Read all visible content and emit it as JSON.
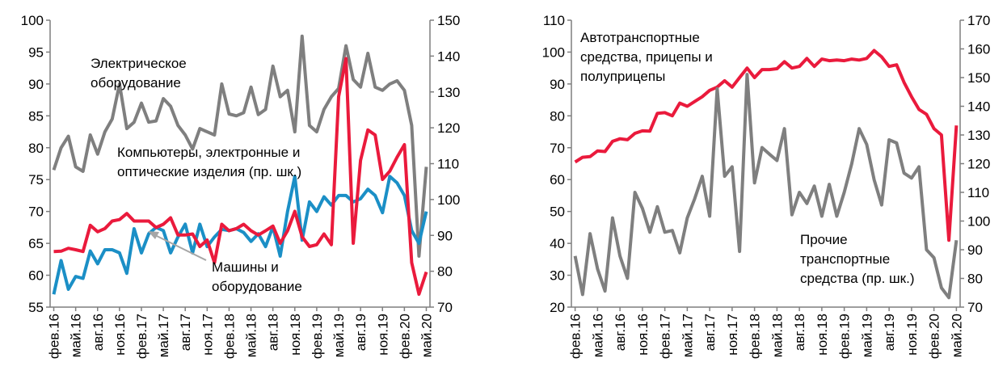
{
  "chart_data": [
    {
      "type": "line",
      "categories": [
        "фев.16",
        null,
        null,
        "май.16",
        null,
        null,
        "авг.16",
        null,
        null,
        "ноя.16",
        null,
        null,
        "фев.17",
        null,
        null,
        "май.17",
        null,
        null,
        "авг.17",
        null,
        null,
        "ноя.17",
        null,
        null,
        "фев.18",
        null,
        null,
        "май.18",
        null,
        null,
        "авг.18",
        null,
        null,
        "ноя.18",
        null,
        null,
        "фев.19",
        null,
        null,
        "май.19",
        null,
        null,
        "авг.19",
        null,
        null,
        "ноя.19",
        null,
        null,
        "фев.20",
        null,
        null,
        "май.20"
      ],
      "ylim": [
        55,
        100
      ],
      "yticks": [
        55,
        60,
        65,
        70,
        75,
        80,
        85,
        90,
        95,
        100
      ],
      "y2lim": [
        70,
        150
      ],
      "y2ticks": [
        70,
        80,
        90,
        100,
        110,
        120,
        130,
        140,
        150
      ],
      "annotations": [
        {
          "lines": [
            "Электрическое",
            "оборудование"
          ]
        },
        {
          "lines": [
            "Компьютеры, электронные и",
            "оптические изделия (пр. шк.)"
          ]
        },
        {
          "lines": [
            "Машины и",
            "оборудование"
          ]
        }
      ],
      "series": [
        {
          "color": "#7f7f7f",
          "values": [
            76.5,
            80,
            81.8,
            77,
            76.3,
            82,
            79,
            82.5,
            84.5,
            90,
            83,
            84,
            87,
            84,
            84.2,
            87.7,
            86.5,
            83.5,
            82,
            79.8,
            83,
            82.5,
            82,
            90,
            85.3,
            85,
            85.5,
            89.5,
            85.2,
            86,
            92.8,
            88,
            89,
            82.5,
            97.5,
            83.5,
            82.5,
            86,
            88,
            89.3,
            96,
            90.7,
            89.5,
            94.8,
            89.5,
            89,
            90,
            90.5,
            89,
            83.5,
            63,
            77
          ]
        },
        {
          "color": "#1b8fc6",
          "values": [
            57,
            62.3,
            57.8,
            59.8,
            59.5,
            63.8,
            61.8,
            64,
            64,
            63.5,
            60.3,
            67.3,
            63.5,
            66.5,
            67.5,
            67,
            63.5,
            66,
            68,
            63.5,
            68,
            64.5,
            66,
            67.2,
            67,
            67.3,
            66.7,
            65.3,
            66.5,
            64.5,
            67.6,
            63,
            70,
            75.5,
            65.5,
            71.5,
            70,
            72.3,
            71,
            72.5,
            72.5,
            71.5,
            72,
            73.5,
            72.5,
            69.8,
            75.5,
            74.5,
            72.5,
            67,
            65,
            70
          ]
        },
        {
          "color": "#ea1a3c",
          "axis": "y2",
          "values": [
            85.5,
            85.6,
            86.4,
            86,
            85.5,
            92.8,
            91,
            91.9,
            94,
            94.4,
            96.1,
            94,
            94,
            94,
            92.2,
            93.1,
            94.9,
            90.1,
            90.1,
            90.4,
            86.9,
            88.7,
            82.4,
            93.1,
            91.3,
            91.9,
            93.1,
            91.3,
            90.1,
            91.3,
            92.6,
            87.8,
            91.3,
            96.7,
            89.6,
            86.9,
            87.4,
            90.4,
            87.4,
            128.7,
            139.3,
            87.8,
            110.9,
            119.4,
            118,
            105.6,
            107.9,
            111.8,
            115.3,
            82.4,
            73.6,
            79.8
          ]
        }
      ]
    },
    {
      "type": "line",
      "categories": [
        "фев.16",
        null,
        null,
        "май.16",
        null,
        null,
        "авг.16",
        null,
        null,
        "ноя.16",
        null,
        null,
        "фев.17",
        null,
        null,
        "май.17",
        null,
        null,
        "авг.17",
        null,
        null,
        "ноя.17",
        null,
        null,
        "фев.18",
        null,
        null,
        "май.18",
        null,
        null,
        "авг.18",
        null,
        null,
        "ноя.18",
        null,
        null,
        "фев.19",
        null,
        null,
        "май.19",
        null,
        null,
        "авг.19",
        null,
        null,
        "ноя.19",
        null,
        null,
        "фев.20",
        null,
        null,
        "май.20"
      ],
      "ylim": [
        20,
        110
      ],
      "yticks": [
        20,
        30,
        40,
        50,
        60,
        70,
        80,
        90,
        100,
        110
      ],
      "y2lim": [
        70,
        170
      ],
      "y2ticks": [
        70,
        80,
        90,
        100,
        110,
        120,
        130,
        140,
        150,
        160,
        170
      ],
      "annotations": [
        {
          "lines": [
            "Автотранспортные",
            "средства, прицепы и",
            "полуприцепы"
          ]
        },
        {
          "lines": [
            "Прочие",
            "транспортные",
            "средства (пр. шк.)"
          ]
        }
      ],
      "series": [
        {
          "color": "#ea1a3c",
          "values": [
            65.5,
            67,
            67.2,
            69,
            68.8,
            72,
            72.8,
            72.5,
            74.5,
            75.3,
            75.2,
            80.8,
            81,
            80,
            84,
            83,
            84.5,
            86,
            88,
            89,
            91,
            89,
            92,
            95,
            92,
            94.5,
            94.5,
            94.8,
            97,
            95,
            95.5,
            98,
            95.5,
            97.8,
            97.3,
            97.5,
            97.3,
            97.8,
            97.5,
            98,
            100.5,
            98.5,
            95.5,
            96,
            90.5,
            86,
            82,
            80.5,
            76,
            74,
            41,
            77
          ]
        },
        {
          "color": "#7f7f7f",
          "axis": "y2",
          "values": [
            87.8,
            74.4,
            95.6,
            83.3,
            75.6,
            101.1,
            87.8,
            80,
            110,
            104.4,
            96.1,
            105,
            96.1,
            96.7,
            88.9,
            101.1,
            107.8,
            115.6,
            101.7,
            146.1,
            115.6,
            118.9,
            89.4,
            151.1,
            113.3,
            125.6,
            123.3,
            121.1,
            132.2,
            102.2,
            110,
            106.1,
            112.2,
            101.7,
            112.8,
            101.7,
            110,
            120,
            132.2,
            126.7,
            114.4,
            105.6,
            128.3,
            127.2,
            116.7,
            115,
            118.9,
            90,
            87.2,
            76.7,
            73.3,
            93.3
          ]
        }
      ]
    }
  ]
}
